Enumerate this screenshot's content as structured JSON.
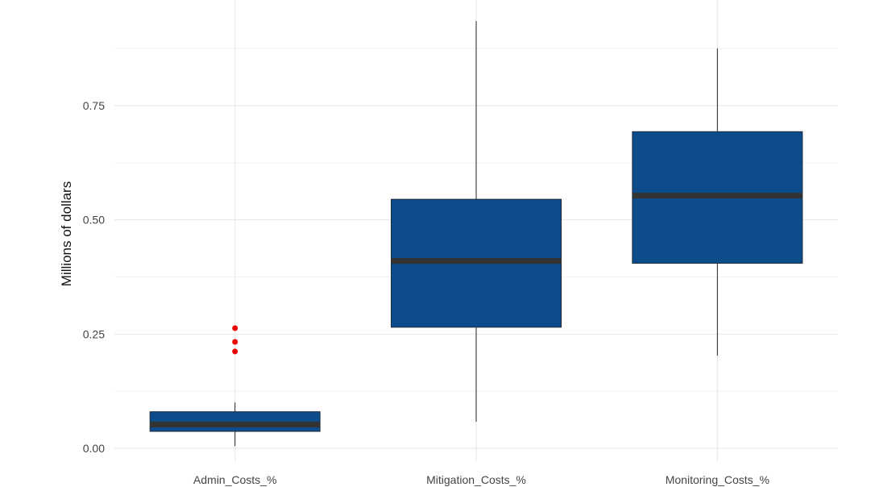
{
  "chart_data": {
    "type": "box",
    "title": "",
    "xlabel": "",
    "ylabel": "Millions of dollars",
    "ylim": [
      0,
      0.93
    ],
    "yticks": [
      0.0,
      0.25,
      0.5,
      0.75
    ],
    "ytick_labels": [
      "0.00",
      "0.25",
      "0.50",
      "0.75"
    ],
    "grid": true,
    "legend": "none",
    "categories": [
      "Admin_Costs_%",
      "Mitigation_Costs_%",
      "Monitoring_Costs_%"
    ],
    "boxes": [
      {
        "category": "Admin_Costs_%",
        "whisker_low": 0.005,
        "q1": 0.037,
        "median": 0.052,
        "q3": 0.08,
        "whisker_high": 0.1,
        "outliers": [
          0.212,
          0.233,
          0.263
        ]
      },
      {
        "category": "Mitigation_Costs_%",
        "whisker_low": 0.058,
        "q1": 0.265,
        "median": 0.41,
        "q3": 0.545,
        "whisker_high": 0.935,
        "outliers": []
      },
      {
        "category": "Monitoring_Costs_%",
        "whisker_low": 0.203,
        "q1": 0.405,
        "median": 0.553,
        "q3": 0.693,
        "whisker_high": 0.875,
        "outliers": []
      }
    ],
    "colors": {
      "box_fill": "#0d4c8a",
      "box_edge": "#1f2d3d",
      "median": "#333333",
      "outlier": "#ee0000",
      "grid": "#e6e6e6"
    }
  }
}
